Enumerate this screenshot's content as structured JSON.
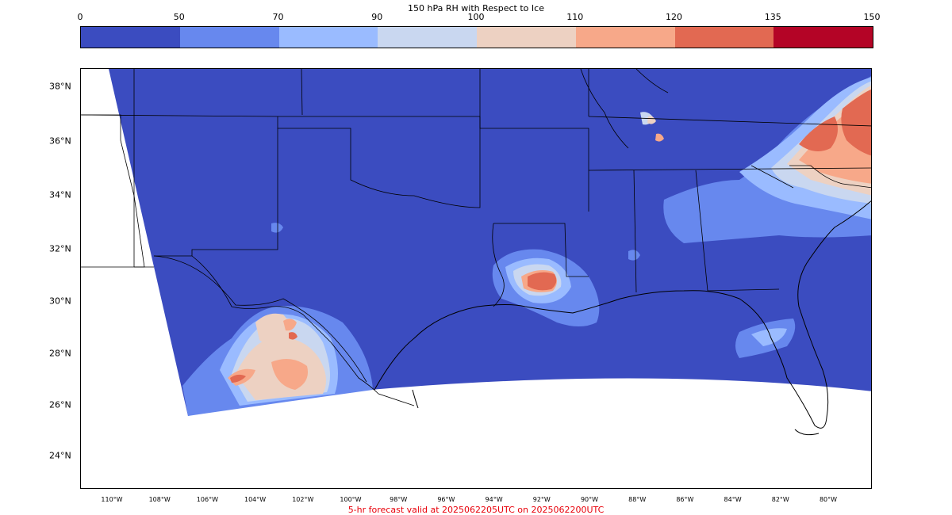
{
  "colorbar": {
    "title": "150 hPa RH with Respect to Ice",
    "ticks": [
      "0",
      "50",
      "70",
      "90",
      "100",
      "110",
      "120",
      "135",
      "150"
    ],
    "colors": [
      "#3b4cc0",
      "#6788ee",
      "#9abbff",
      "#c9d7f0",
      "#edd1c2",
      "#f7a889",
      "#e26952",
      "#b40426"
    ]
  },
  "map": {
    "lat_labels": [
      "38°N",
      "36°N",
      "34°N",
      "32°N",
      "30°N",
      "28°N",
      "26°N",
      "24°N"
    ],
    "lon_labels": [
      "110°W",
      "108°W",
      "106°W",
      "104°W",
      "102°W",
      "100°W",
      "98°W",
      "96°W",
      "94°W",
      "92°W",
      "90°W",
      "88°W",
      "86°W",
      "84°W",
      "82°W",
      "80°W"
    ],
    "background_color": "#3b4cc0",
    "features": [
      {
        "name": "west-texas-moist-area",
        "level": "100-110"
      },
      {
        "name": "louisiana-moist-area",
        "level": "120-135"
      },
      {
        "name": "carolinas-moist-area",
        "level": "120-135"
      },
      {
        "name": "tennessee-moist-spot",
        "level": "110-120"
      }
    ]
  },
  "footer": "5-hr forecast valid at 2025062205UTC on 2025062200UTC"
}
